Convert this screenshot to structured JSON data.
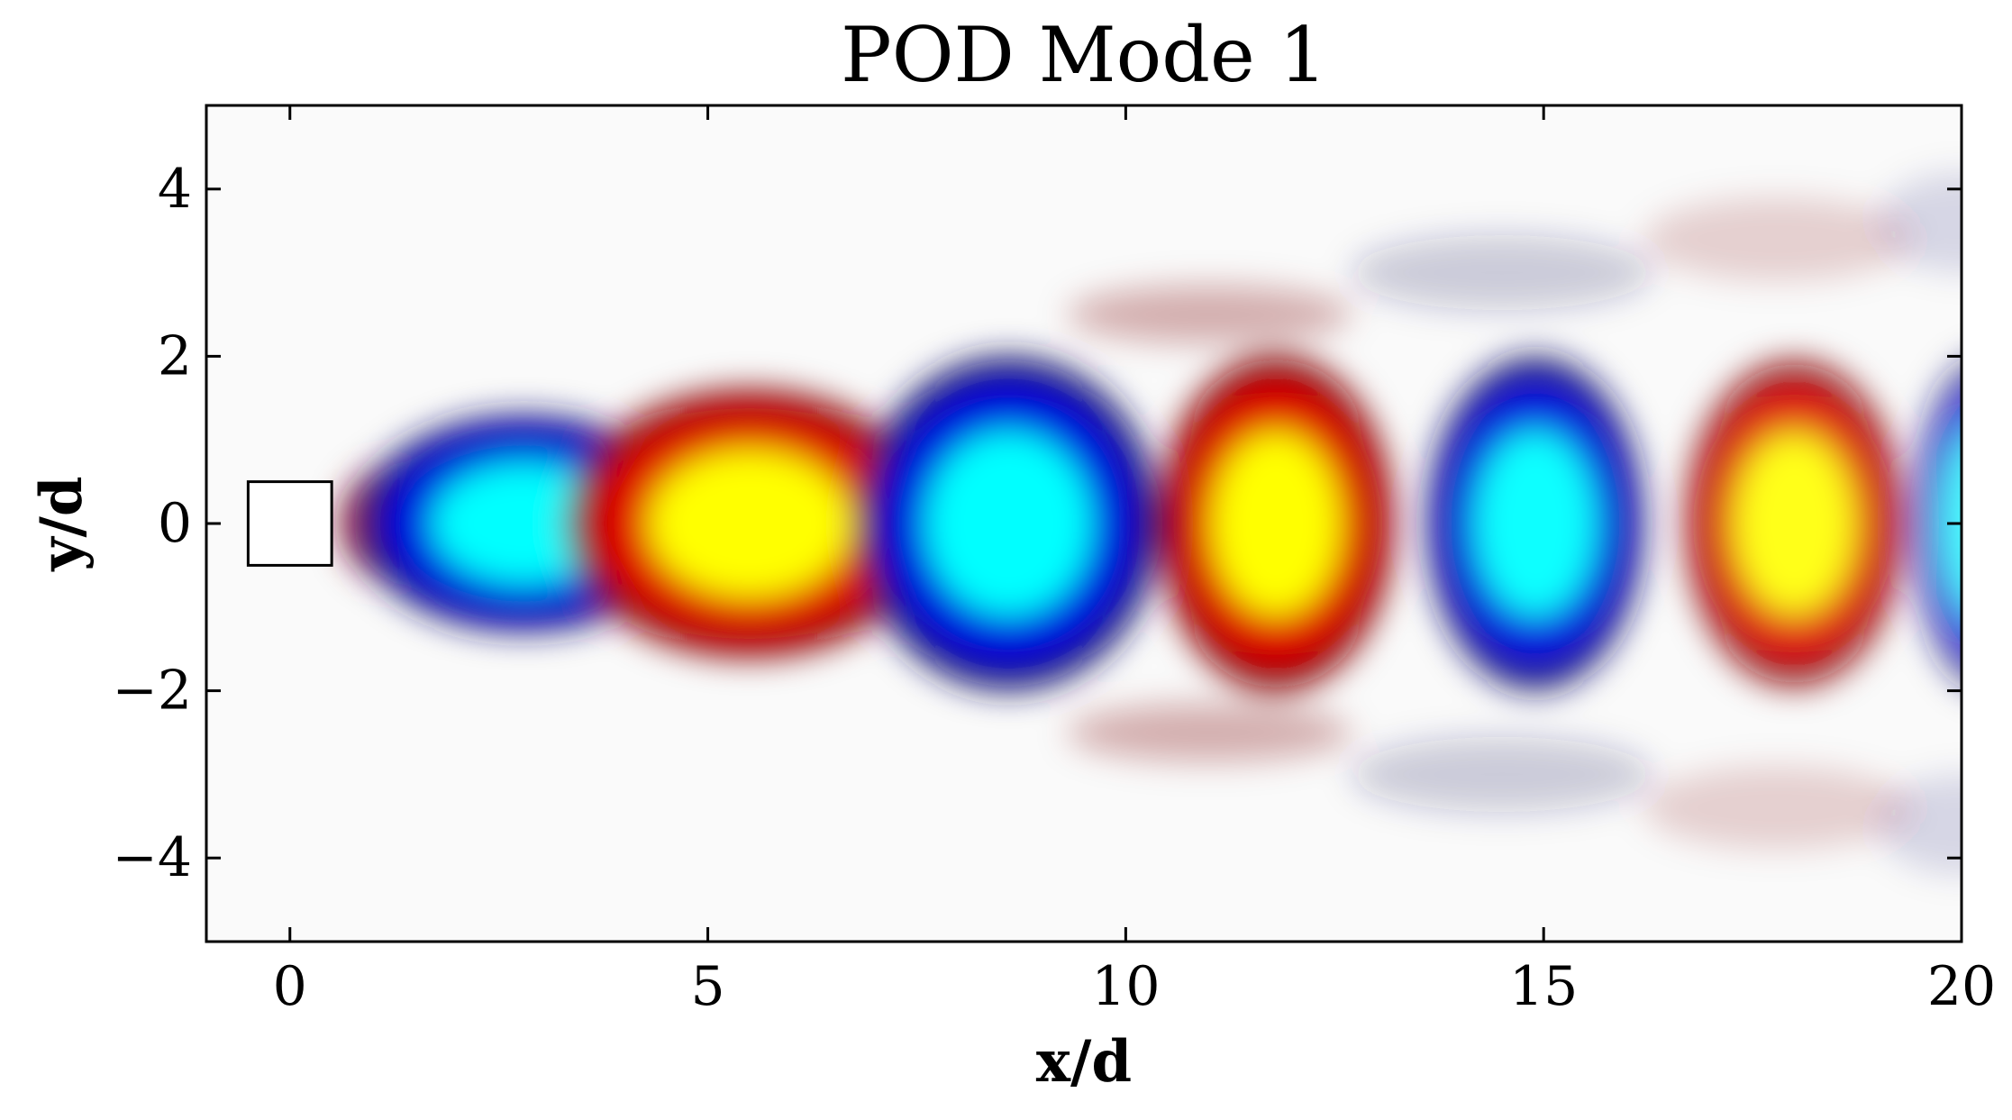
{
  "chart_data": {
    "type": "heatmap",
    "title": "POD Mode 1",
    "xlabel": "x/d",
    "ylabel": "y/d",
    "xlim": [
      -1,
      20
    ],
    "ylim": [
      -5,
      5
    ],
    "x_ticks": [
      0,
      5,
      10,
      15,
      20
    ],
    "y_ticks": [
      -4,
      -2,
      0,
      2,
      4
    ],
    "y_tick_labels": [
      "−4",
      "−2",
      "0",
      "2",
      "4"
    ],
    "grid": false,
    "colormap": "seismic-like diverging (navy-blue-cyan / white / darkred-red-yellow)",
    "colors": {
      "strong_negative": "#00ffff",
      "negative": "#0000e0",
      "weak_negative": "#1a1a66",
      "zero": "#fafafa",
      "weak_positive": "#7a1010",
      "positive": "#e00000",
      "strong_positive": "#ffff00"
    },
    "obstacle": {
      "shape": "square",
      "x_range": [
        -0.5,
        0.5
      ],
      "y_range": [
        -0.5,
        0.5
      ]
    },
    "structures": [
      {
        "sign": "positive",
        "cx": 1.6,
        "cy": 0.0,
        "rx": 1.0,
        "ry": 0.8,
        "amplitude": 1.0
      },
      {
        "sign": "negative",
        "cx": 2.8,
        "cy": 0.0,
        "rx": 2.0,
        "ry": 1.3,
        "amplitude": 1.0
      },
      {
        "sign": "positive",
        "cx": 5.5,
        "cy": 0.0,
        "rx": 2.2,
        "ry": 1.6,
        "amplitude": 1.0
      },
      {
        "sign": "negative",
        "cx": 8.6,
        "cy": 0.0,
        "rx": 1.8,
        "ry": 2.0,
        "amplitude": 1.0
      },
      {
        "sign": "positive",
        "cx": 11.8,
        "cy": 0.0,
        "rx": 1.4,
        "ry": 2.0,
        "amplitude": 1.0
      },
      {
        "sign": "negative",
        "cx": 14.9,
        "cy": 0.0,
        "rx": 1.3,
        "ry": 2.0,
        "amplitude": 0.95
      },
      {
        "sign": "positive",
        "cx": 18.0,
        "cy": 0.0,
        "rx": 1.3,
        "ry": 1.95,
        "amplitude": 0.9
      },
      {
        "sign": "negative",
        "cx": 20.3,
        "cy": 0.0,
        "rx": 0.9,
        "ry": 2.0,
        "amplitude": 0.7
      },
      {
        "sign": "positive",
        "cx": 11.0,
        "cy": 2.5,
        "rx": 1.7,
        "ry": 0.35,
        "amplitude": 0.3
      },
      {
        "sign": "positive",
        "cx": 11.0,
        "cy": -2.5,
        "rx": 1.7,
        "ry": 0.35,
        "amplitude": 0.3
      },
      {
        "sign": "negative",
        "cx": 14.5,
        "cy": 3.0,
        "rx": 1.8,
        "ry": 0.45,
        "amplitude": 0.22
      },
      {
        "sign": "negative",
        "cx": 14.5,
        "cy": -3.0,
        "rx": 1.8,
        "ry": 0.45,
        "amplitude": 0.22
      },
      {
        "sign": "positive",
        "cx": 17.8,
        "cy": 3.4,
        "rx": 1.6,
        "ry": 0.5,
        "amplitude": 0.17
      },
      {
        "sign": "positive",
        "cx": 17.8,
        "cy": -3.4,
        "rx": 1.6,
        "ry": 0.5,
        "amplitude": 0.17
      },
      {
        "sign": "negative",
        "cx": 20.0,
        "cy": 3.6,
        "rx": 1.0,
        "ry": 0.6,
        "amplitude": 0.14
      },
      {
        "sign": "negative",
        "cx": 20.0,
        "cy": -3.6,
        "rx": 1.0,
        "ry": 0.6,
        "amplitude": 0.14
      }
    ]
  }
}
